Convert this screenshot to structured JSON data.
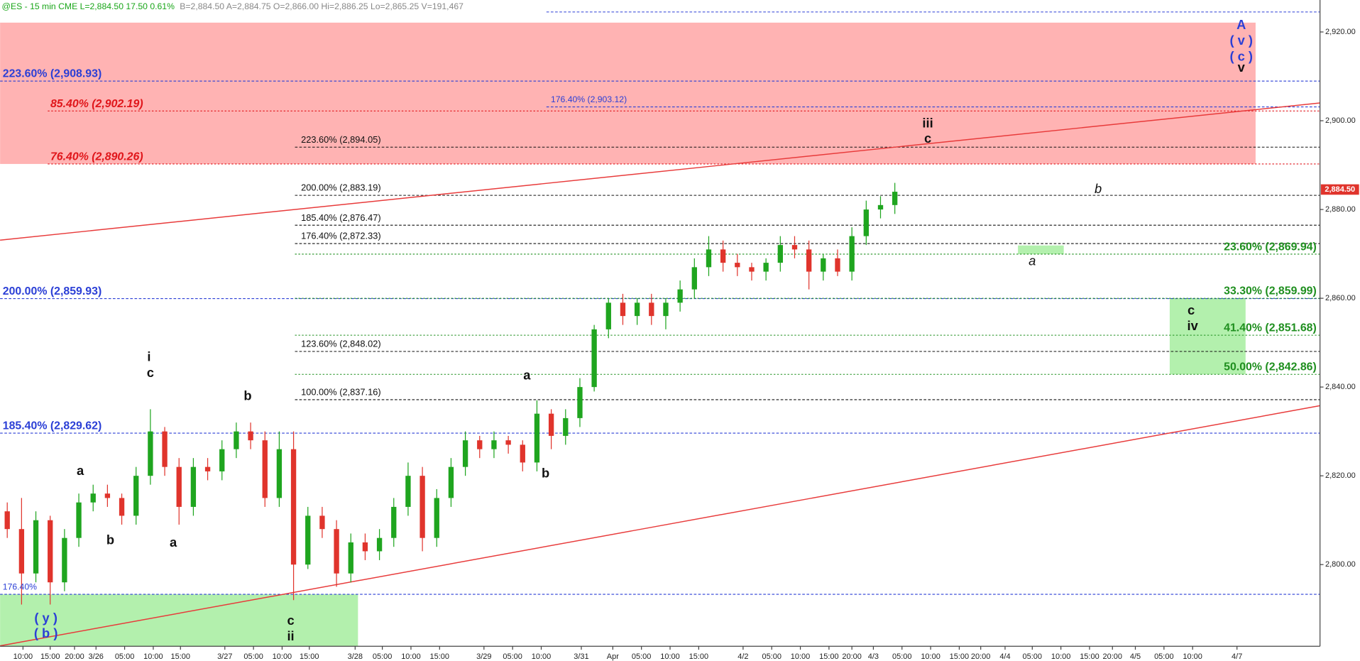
{
  "chart_data": {
    "type": "candlestick",
    "header": [
      {
        "text": "@ES - 15 min  CME  L=2,884.50  17.50  0.61%",
        "color": "#19a619"
      },
      {
        "text": "B=2,884.50  A=2,884.75  O=2,866.00  Hi=2,886.25  Lo=2,865.25  V=191,467",
        "color": "#888888"
      }
    ],
    "xlim": [
      0,
      922
    ],
    "ylim": [
      2781.6,
      2927.2
    ],
    "yticks": [
      {
        "value": 2800,
        "label": "2,800.00"
      },
      {
        "value": 2820,
        "label": "2,820.00"
      },
      {
        "value": 2840,
        "label": "2,840.00"
      },
      {
        "value": 2860,
        "label": "2,860.00"
      },
      {
        "value": 2880,
        "label": "2,880.00"
      },
      {
        "value": 2900,
        "label": "2,900.00"
      },
      {
        "value": 2920,
        "label": "2,920.00"
      }
    ],
    "xticks": [
      {
        "value": 16,
        "label": "10:00"
      },
      {
        "value": 35,
        "label": "15:00"
      },
      {
        "value": 52,
        "label": "20:00"
      },
      {
        "value": 67,
        "label": "3/26"
      },
      {
        "value": 87,
        "label": "05:00"
      },
      {
        "value": 107,
        "label": "10:00"
      },
      {
        "value": 126,
        "label": "15:00"
      },
      {
        "value": 157,
        "label": "3/27"
      },
      {
        "value": 177,
        "label": "05:00"
      },
      {
        "value": 197,
        "label": "10:00"
      },
      {
        "value": 216,
        "label": "15:00"
      },
      {
        "value": 248,
        "label": "3/28"
      },
      {
        "value": 267,
        "label": "05:00"
      },
      {
        "value": 287,
        "label": "10:00"
      },
      {
        "value": 307,
        "label": "15:00"
      },
      {
        "value": 338,
        "label": "3/29"
      },
      {
        "value": 358,
        "label": "05:00"
      },
      {
        "value": 378,
        "label": "10:00"
      },
      {
        "value": 406,
        "label": "3/31"
      },
      {
        "value": 428,
        "label": "Apr"
      },
      {
        "value": 448,
        "label": "05:00"
      },
      {
        "value": 468,
        "label": "10:00"
      },
      {
        "value": 488,
        "label": "15:00"
      },
      {
        "value": 519,
        "label": "4/2"
      },
      {
        "value": 539,
        "label": "05:00"
      },
      {
        "value": 559,
        "label": "10:00"
      },
      {
        "value": 579,
        "label": "15:00"
      },
      {
        "value": 595,
        "label": "20:00"
      },
      {
        "value": 610,
        "label": "4/3"
      },
      {
        "value": 630,
        "label": "05:00"
      },
      {
        "value": 650,
        "label": "10:00"
      },
      {
        "value": 670,
        "label": "15:00"
      },
      {
        "value": 685,
        "label": "20:00"
      },
      {
        "value": 702,
        "label": "4/4"
      },
      {
        "value": 721,
        "label": "05:00"
      },
      {
        "value": 741,
        "label": "10:00"
      },
      {
        "value": 761,
        "label": "15:00"
      },
      {
        "value": 777,
        "label": "20:00"
      },
      {
        "value": 793,
        "label": "4/5"
      },
      {
        "value": 813,
        "label": "05:00"
      },
      {
        "value": 833,
        "label": "10:00"
      },
      {
        "value": 864,
        "label": "4/7"
      }
    ],
    "up_color": "#1fa51f",
    "down_color": "#e0342c",
    "x": [
      5,
      15,
      25,
      35,
      45,
      55,
      65,
      75,
      85,
      95,
      105,
      115,
      125,
      135,
      145,
      155,
      165,
      175,
      185,
      195,
      205,
      215,
      225,
      235,
      245,
      255,
      265,
      275,
      285,
      295,
      305,
      315,
      325,
      335,
      345,
      355,
      365,
      375,
      385,
      395,
      405,
      415,
      425,
      435,
      445,
      455,
      465,
      475,
      485,
      495,
      505,
      515,
      525,
      535,
      545,
      555,
      565,
      575,
      585,
      595,
      605,
      615,
      625
    ],
    "open": [
      2812,
      2808,
      2798,
      2810,
      2796,
      2806,
      2814,
      2816,
      2815,
      2811,
      2820,
      2830,
      2822,
      2813,
      2822,
      2821,
      2826,
      2830,
      2828,
      2815,
      2826,
      2800,
      2811,
      2808,
      2798,
      2805,
      2803,
      2806,
      2813,
      2820,
      2806,
      2815,
      2822,
      2828,
      2826,
      2828,
      2827,
      2823,
      2834,
      2829,
      2833,
      2840,
      2853,
      2859,
      2856,
      2859,
      2856,
      2859,
      2862,
      2867,
      2871,
      2868,
      2867,
      2866,
      2868,
      2872,
      2871,
      2866,
      2869,
      2866,
      2874,
      2880,
      2881
    ],
    "high": [
      2814,
      2815,
      2812,
      2811,
      2808,
      2816,
      2818,
      2818,
      2816,
      2822,
      2835,
      2831,
      2824,
      2824,
      2824,
      2828,
      2832,
      2832,
      2830,
      2830,
      2830,
      2813,
      2813,
      2810,
      2807,
      2807,
      2808,
      2815,
      2823,
      2822,
      2817,
      2824,
      2830,
      2829,
      2830,
      2829,
      2828,
      2837,
      2835,
      2835,
      2842,
      2854,
      2860,
      2861,
      2860,
      2861,
      2860,
      2864,
      2869,
      2874,
      2873,
      2870,
      2868,
      2869,
      2874,
      2874,
      2873,
      2870,
      2871,
      2876,
      2882,
      2883,
      2886
    ],
    "low": [
      2806,
      2791,
      2796,
      2791,
      2794,
      2804,
      2812,
      2813,
      2809,
      2809,
      2818,
      2820,
      2809,
      2811,
      2819,
      2819,
      2824,
      2826,
      2813,
      2813,
      2792,
      2799,
      2806,
      2795,
      2796,
      2801,
      2801,
      2804,
      2811,
      2803,
      2804,
      2813,
      2820,
      2824,
      2824,
      2825,
      2821,
      2821,
      2826,
      2827,
      2831,
      2839,
      2851,
      2854,
      2854,
      2854,
      2853,
      2857,
      2860,
      2865,
      2866,
      2865,
      2864,
      2864,
      2866,
      2869,
      2862,
      2864,
      2865,
      2864,
      2872,
      2878,
      2879
    ],
    "close": [
      2808,
      2798,
      2810,
      2796,
      2806,
      2814,
      2816,
      2815,
      2811,
      2820,
      2830,
      2822,
      2813,
      2822,
      2821,
      2826,
      2830,
      2828,
      2815,
      2826,
      2800,
      2811,
      2808,
      2798,
      2805,
      2803,
      2806,
      2813,
      2820,
      2806,
      2815,
      2822,
      2828,
      2826,
      2828,
      2827,
      2823,
      2834,
      2829,
      2833,
      2840,
      2853,
      2859,
      2856,
      2859,
      2856,
      2859,
      2862,
      2867,
      2871,
      2868,
      2867,
      2866,
      2868,
      2872,
      2871,
      2866,
      2869,
      2866,
      2874,
      2880,
      2881,
      2884
    ],
    "last_price": {
      "value": 2884.5,
      "label": "2,884.50",
      "color": "#e0342c"
    },
    "zones": [
      {
        "x": [
          0,
          877
        ],
        "y": [
          2890.26,
          2922.1
        ],
        "color": "#ffb3b3"
      },
      {
        "x": [
          0,
          250
        ],
        "y": [
          2781.6,
          2793.3
        ],
        "color": "#b3f0ad"
      },
      {
        "x": [
          817,
          870
        ],
        "y": [
          2842.86,
          2859.99
        ],
        "color": "#b3f0ad"
      },
      {
        "x": [
          711,
          743
        ],
        "y": [
          2869.94,
          2871.9
        ],
        "color": "#b3f0ad"
      }
    ],
    "trendlines": [
      {
        "x": [
          0,
          922
        ],
        "y": [
          2873.1,
          2904.0
        ],
        "color": "#e83a3a"
      },
      {
        "x": [
          0,
          922
        ],
        "y": [
          2781.7,
          2835.8
        ],
        "color": "#e83a3a"
      }
    ],
    "levels": [
      {
        "value": 2924.5,
        "group": "blue-minor",
        "color": "#2b3fd6"
      },
      {
        "value": 2908.93,
        "label": "223.60% (2,908.93)",
        "group": "blue-major",
        "color": "#2b3fd6"
      },
      {
        "value": 2903.12,
        "label": "176.40% (2,903.12)",
        "group": "blue-minor",
        "color": "#2b3fd6"
      },
      {
        "value": 2902.19,
        "label": "85.40% (2,902.19)",
        "group": "red",
        "color": "#e0161b"
      },
      {
        "value": 2894.05,
        "label": "223.60% (2,894.05)",
        "group": "black",
        "color": "#111111"
      },
      {
        "value": 2890.26,
        "label": "76.40% (2,890.26)",
        "group": "red",
        "color": "#e0161b"
      },
      {
        "value": 2883.19,
        "label": "200.00% (2,883.19)",
        "group": "black",
        "color": "#111111"
      },
      {
        "value": 2876.47,
        "label": "185.40% (2,876.47)",
        "group": "black",
        "color": "#111111"
      },
      {
        "value": 2872.33,
        "label": "176.40% (2,872.33)",
        "group": "black",
        "color": "#111111"
      },
      {
        "value": 2869.94,
        "label": "23.60% (2,869.94)",
        "group": "green",
        "color": "#1f8f1f"
      },
      {
        "value": 2859.93,
        "label": "200.00% (2,859.93)",
        "group": "blue-major",
        "color": "#2b3fd6"
      },
      {
        "value": 2859.99,
        "label": "33.30% (2,859.99)",
        "group": "green",
        "color": "#1f8f1f"
      },
      {
        "value": 2851.68,
        "label": "41.40% (2,851.68)",
        "group": "green",
        "color": "#1f8f1f"
      },
      {
        "value": 2848.02,
        "label": "123.60% (2,848.02)",
        "group": "black",
        "color": "#111111"
      },
      {
        "value": 2842.86,
        "label": "50.00% (2,842.86)",
        "group": "green",
        "color": "#1f8f1f"
      },
      {
        "value": 2837.16,
        "label": "100.00% (2,837.16)",
        "group": "black",
        "color": "#111111"
      },
      {
        "value": 2829.62,
        "label": "185.40% (2,829.62)",
        "group": "blue-major",
        "color": "#2b3fd6"
      },
      {
        "value": 2793.3,
        "label": "176.40%",
        "group": "blue-small",
        "color": "#2b3fd6"
      }
    ],
    "annotations": [
      {
        "text": "A",
        "x": 867,
        "y": 2921.4,
        "color": "#2b3fd6",
        "style": "bold"
      },
      {
        "text": "( v )",
        "x": 867,
        "y": 2917.9,
        "color": "#2b3fd6",
        "style": "bold"
      },
      {
        "text": "( c )",
        "x": 867,
        "y": 2914.3,
        "color": "#2b3fd6",
        "style": "bold"
      },
      {
        "text": "v",
        "x": 867,
        "y": 2911.8,
        "color": "#111111",
        "style": "bold"
      },
      {
        "text": "iii",
        "x": 648,
        "y": 2899.3,
        "color": "#111111",
        "style": "bold"
      },
      {
        "text": "c",
        "x": 648,
        "y": 2895.8,
        "color": "#111111",
        "style": "bold"
      },
      {
        "text": "b",
        "x": 767,
        "y": 2884.5,
        "color": "#111111",
        "style": "italic"
      },
      {
        "text": "a",
        "x": 721,
        "y": 2868.2,
        "color": "#111111",
        "style": "italic"
      },
      {
        "text": "c",
        "x": 832,
        "y": 2857.1,
        "color": "#111111",
        "style": "bold"
      },
      {
        "text": "iv",
        "x": 833,
        "y": 2853.6,
        "color": "#111111",
        "style": "bold"
      },
      {
        "text": "a",
        "x": 368,
        "y": 2842.5,
        "color": "#111111",
        "style": "bold"
      },
      {
        "text": "b",
        "x": 381,
        "y": 2820.4,
        "color": "#111111",
        "style": "bold"
      },
      {
        "text": "i",
        "x": 104,
        "y": 2846.6,
        "color": "#111111",
        "style": "bold"
      },
      {
        "text": "c",
        "x": 105,
        "y": 2843.0,
        "color": "#111111",
        "style": "bold"
      },
      {
        "text": "b",
        "x": 173,
        "y": 2837.8,
        "color": "#111111",
        "style": "bold"
      },
      {
        "text": "a",
        "x": 56,
        "y": 2821.0,
        "color": "#111111",
        "style": "bold"
      },
      {
        "text": "b",
        "x": 77,
        "y": 2805.4,
        "color": "#111111",
        "style": "bold"
      },
      {
        "text": "a",
        "x": 121,
        "y": 2804.8,
        "color": "#111111",
        "style": "bold"
      },
      {
        "text": "( y )",
        "x": 32,
        "y": 2787.8,
        "color": "#2b3fd6",
        "style": "bold"
      },
      {
        "text": "( b )",
        "x": 32,
        "y": 2784.3,
        "color": "#2b3fd6",
        "style": "bold"
      },
      {
        "text": "c",
        "x": 203,
        "y": 2787.2,
        "color": "#111111",
        "style": "bold"
      },
      {
        "text": "ii",
        "x": 203,
        "y": 2783.7,
        "color": "#111111",
        "style": "bold"
      }
    ]
  }
}
